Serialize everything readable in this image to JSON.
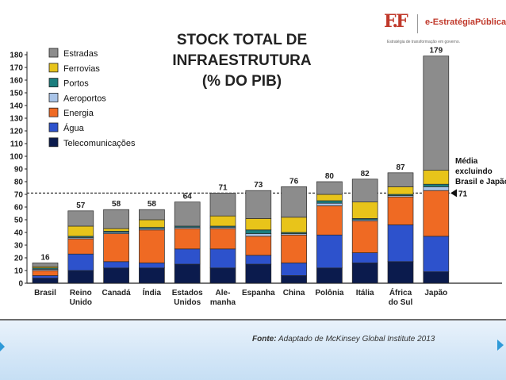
{
  "brand": {
    "mark": "F.F",
    "name": "e-EstratégiaPública®",
    "tagline": "Estratégia de transformação em governo."
  },
  "source": {
    "label": "Fonte:",
    "text": "Adaptado de McKinsey Global Institute 2013"
  },
  "chart_data": {
    "type": "bar",
    "stacked": true,
    "title": [
      "STOCK TOTAL DE",
      "INFRAESTRUTURA",
      "(% DO PIB)"
    ],
    "ylim": [
      0,
      180
    ],
    "yticks": [
      0,
      10,
      20,
      30,
      40,
      50,
      60,
      70,
      80,
      90,
      100,
      110,
      120,
      130,
      140,
      150,
      160,
      170,
      180
    ],
    "categories": [
      [
        "Brasil"
      ],
      [
        "Reino",
        "Unido"
      ],
      [
        "Canadá"
      ],
      [
        "Índia"
      ],
      [
        "Estados",
        "Unidos"
      ],
      [
        "Ale-",
        "manha"
      ],
      [
        "Espanha"
      ],
      [
        "China"
      ],
      [
        "Polônia"
      ],
      [
        "Itália"
      ],
      [
        "África",
        "do Sul"
      ],
      [
        "Japão"
      ]
    ],
    "totals": [
      16,
      57,
      58,
      58,
      64,
      71,
      73,
      76,
      80,
      82,
      87,
      179
    ],
    "series": [
      {
        "name": "Telecomunicações",
        "color": "#0b1b4d",
        "values": [
          4,
          10,
          12,
          12,
          15,
          12,
          15,
          6,
          12,
          16,
          17,
          9
        ]
      },
      {
        "name": "Água",
        "color": "#2d52cc",
        "values": [
          2,
          13,
          5,
          4,
          12,
          15,
          7,
          10,
          26,
          8,
          29,
          28
        ]
      },
      {
        "name": "Energia",
        "color": "#ef6a23",
        "values": [
          4,
          12,
          22,
          26,
          16,
          16,
          15,
          22,
          23,
          25,
          22,
          36
        ]
      },
      {
        "name": "Aeroportos",
        "color": "#a9c4e8",
        "values": [
          1,
          1,
          1,
          1,
          1,
          1,
          2,
          1,
          2,
          1,
          1,
          3
        ]
      },
      {
        "name": "Portos",
        "color": "#1b7e7e",
        "values": [
          1,
          1,
          1,
          1,
          1,
          1,
          3,
          1,
          2,
          1,
          1,
          2
        ]
      },
      {
        "name": "Ferrovias",
        "color": "#e8c41a",
        "values": [
          1,
          8,
          2,
          6,
          0,
          8,
          9,
          12,
          5,
          13,
          6,
          11
        ]
      },
      {
        "name": "Estradas",
        "color": "#8c8c8c",
        "values": [
          3,
          12,
          15,
          8,
          19,
          18,
          22,
          24,
          10,
          18,
          11,
          90
        ]
      }
    ],
    "legend_order": [
      "Estradas",
      "Ferrovias",
      "Portos",
      "Aeroportos",
      "Energia",
      "Água",
      "Telecomunicações"
    ],
    "legend_position": "top-left",
    "grid": false,
    "reference_line": {
      "value": 71,
      "label": "71",
      "note": [
        "Média",
        "excluindo",
        "Brasil e Japão"
      ]
    }
  }
}
